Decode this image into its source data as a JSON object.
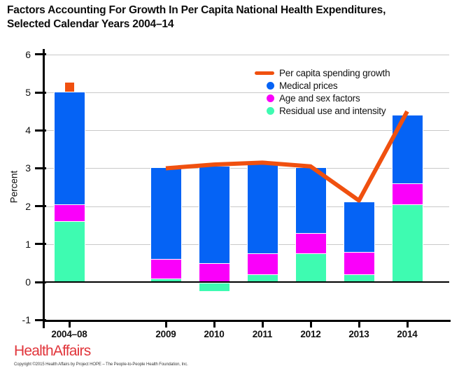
{
  "title": {
    "line1": "Factors Accounting For Growth In Per Capita National Health Expenditures,",
    "line2": "Selected Calendar Years 2004–14"
  },
  "chart_data": {
    "type": "bar",
    "subtype": "stacked-bar-with-line-overlay",
    "title": "Factors Accounting For Growth In Per Capita National Health Expenditures, Selected Calendar Years 2004–14",
    "ylabel": "Percent",
    "categories": [
      "2004–08",
      "2009",
      "2010",
      "2011",
      "2012",
      "2013",
      "2014"
    ],
    "stack_order_bottom_to_top": [
      "Residual use and intensity",
      "Age and sex factors",
      "Medical prices"
    ],
    "series": [
      {
        "name": "Medical prices",
        "color": "#0563F5",
        "values": [
          2.95,
          2.4,
          2.55,
          2.4,
          1.7,
          1.3,
          1.8
        ]
      },
      {
        "name": "Age and sex factors",
        "color": "#FA00FA",
        "values": [
          0.45,
          0.5,
          0.5,
          0.55,
          0.55,
          0.6,
          0.55
        ]
      },
      {
        "name": "Residual use and intensity",
        "color": "#3EFBB1",
        "values": [
          1.6,
          0.1,
          -0.2,
          0.2,
          0.75,
          0.2,
          2.05
        ]
      }
    ],
    "line": {
      "name": "Per capita spending growth",
      "color": "#F0500F",
      "categories": [
        "2009",
        "2010",
        "2011",
        "2012",
        "2013",
        "2014"
      ],
      "values": [
        3.0,
        3.1,
        3.15,
        3.05,
        2.15,
        4.5
      ]
    },
    "marker": {
      "name": "Per capita spending growth",
      "shape": "square",
      "color": "#F0500F",
      "category": "2004–08",
      "value": 5.1
    },
    "yticks": [
      6,
      5,
      4,
      3,
      2,
      1,
      0,
      -1
    ],
    "ylim": [
      -1.05,
      6.15
    ],
    "grid_values": [
      1,
      2,
      3,
      4,
      5,
      6
    ],
    "grid_color": "#C9C9C9",
    "grid": "horizontal",
    "legend_position": "upper-right-inside"
  },
  "legend": {
    "items": [
      {
        "label": "Per capita spending growth",
        "swatch": "line",
        "color": "#F0500F"
      },
      {
        "label": "Medical prices",
        "swatch": "dot",
        "color": "#0563F5"
      },
      {
        "label": "Age and sex factors",
        "swatch": "dot",
        "color": "#FA00FA"
      },
      {
        "label": "Residual use and intensity",
        "swatch": "dot",
        "color": "#3EFBB1"
      }
    ]
  },
  "footer": {
    "logo": "HealthAffairs",
    "copyright": "Copyright ©2015 Health Affairs by Project HOPE – The People-to-People Health Foundation, Inc."
  }
}
